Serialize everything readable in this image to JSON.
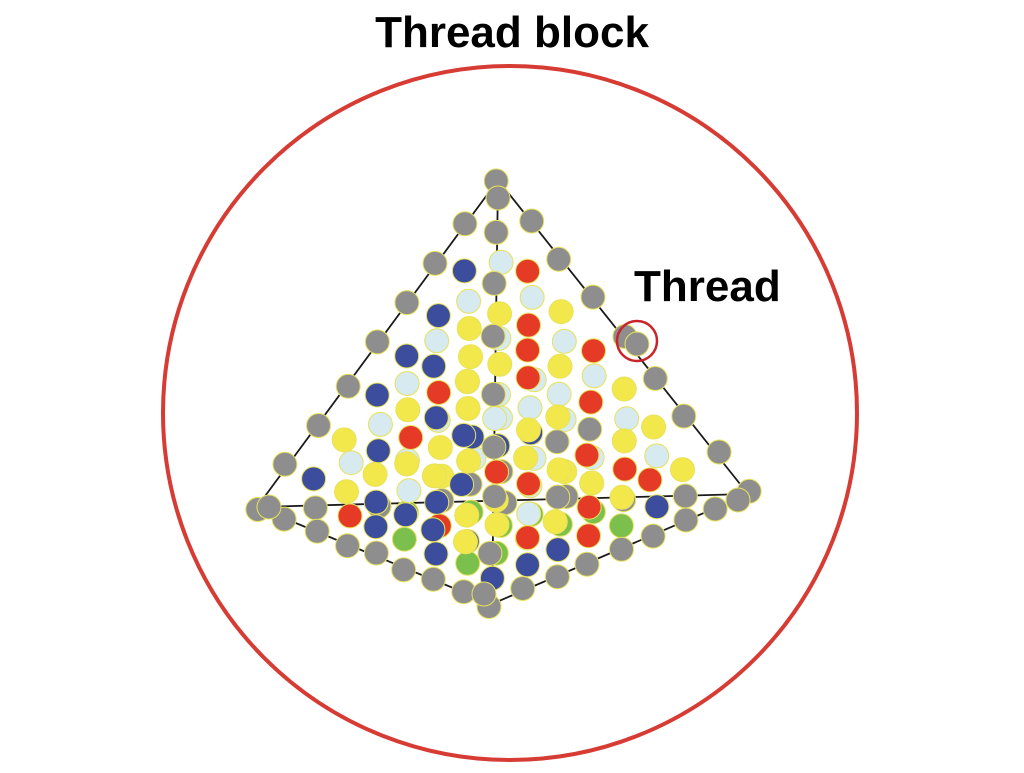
{
  "title": "Thread block",
  "thread_label": "Thread",
  "colors": {
    "block_circle": "#d63c33",
    "edge": "#1a1a1a",
    "dot_outline": "#e8e25a",
    "highlight": "#c8252b",
    "gray": "#8e8e8e",
    "blue": "#3b4d9c",
    "yellow": "#f2e84c",
    "light_blue": "#d6eaf0",
    "red": "#e43a26",
    "green": "#7bbf4d"
  }
}
